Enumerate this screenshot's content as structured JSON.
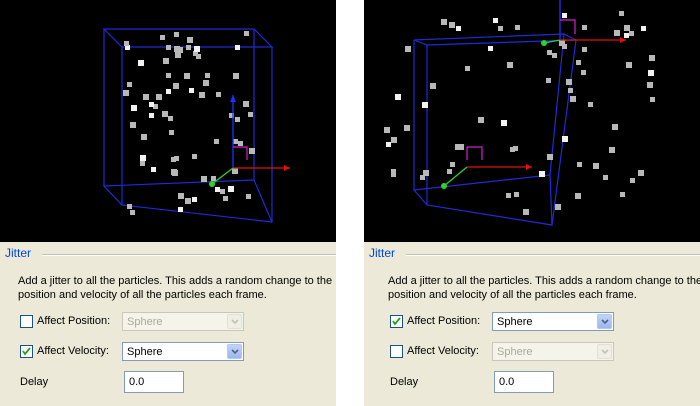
{
  "panels": [
    {
      "group_title": "Jitter",
      "description": "Add a jitter to all the particles. This adds a random change to the position and velocity of all the particles each frame.",
      "affect_position": {
        "label": "Affect Position:",
        "checked": false,
        "value": "Sphere",
        "enabled": false
      },
      "affect_velocity": {
        "label": "Affect Velocity:",
        "checked": true,
        "value": "Sphere",
        "enabled": true
      },
      "delay": {
        "label": "Delay",
        "value": "0.0"
      }
    },
    {
      "group_title": "Jitter",
      "description": "Add a jitter to all the particles. This adds a random change to the position and velocity of all the particles each frame.",
      "affect_position": {
        "label": "Affect Position:",
        "checked": true,
        "value": "Sphere",
        "enabled": true
      },
      "affect_velocity": {
        "label": "Affect Velocity:",
        "checked": false,
        "value": "Sphere",
        "enabled": false
      },
      "delay": {
        "label": "Delay",
        "value": "0.0"
      }
    }
  ],
  "colors": {
    "viewport_bg": "#000000",
    "bounding_box": "#1f2bd6",
    "axis_x": "#e01010",
    "axis_y": "#2fd12f",
    "axis_z": "#2030ff",
    "gizmo": "#d020d0",
    "particle": "#b8b8b8",
    "group_title": "#0046d5",
    "panel_bg": "#ece9d8"
  }
}
